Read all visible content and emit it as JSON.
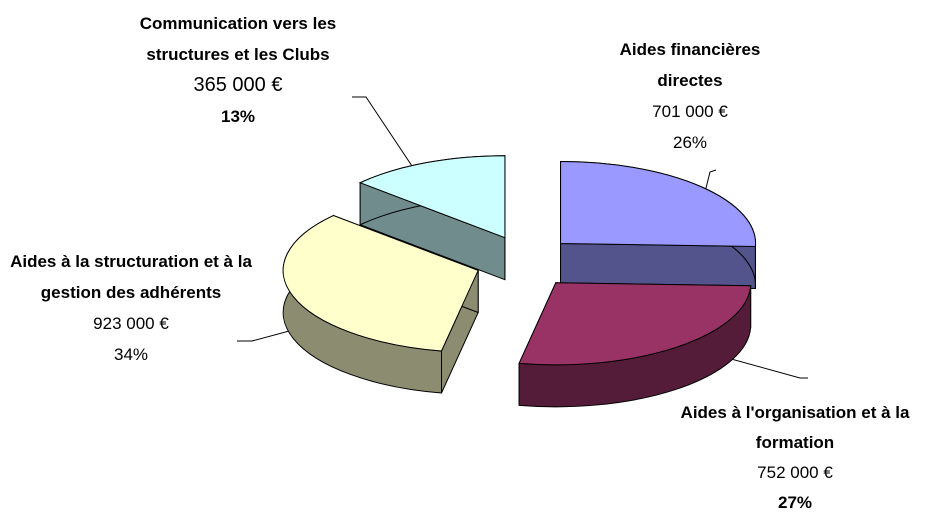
{
  "chart_data": {
    "type": "pie3d",
    "categories": [
      "Aides financières directes",
      "Aides à l'organisation et à la formation",
      "Aides à la structuration et à la gestion des adhérents",
      "Communication vers les structures et les Clubs"
    ],
    "values": [
      701000,
      752000,
      923000,
      365000
    ],
    "value_labels": [
      "701 000 €",
      "752 000 €",
      "923 000 €",
      "365 000 €"
    ],
    "percent_values": [
      26,
      27,
      34,
      13
    ],
    "percent_labels": [
      "26%",
      "27%",
      "34%",
      "13%"
    ],
    "colors": [
      "#9999ff",
      "#993366",
      "#ffffcc",
      "#ccffff"
    ]
  }
}
